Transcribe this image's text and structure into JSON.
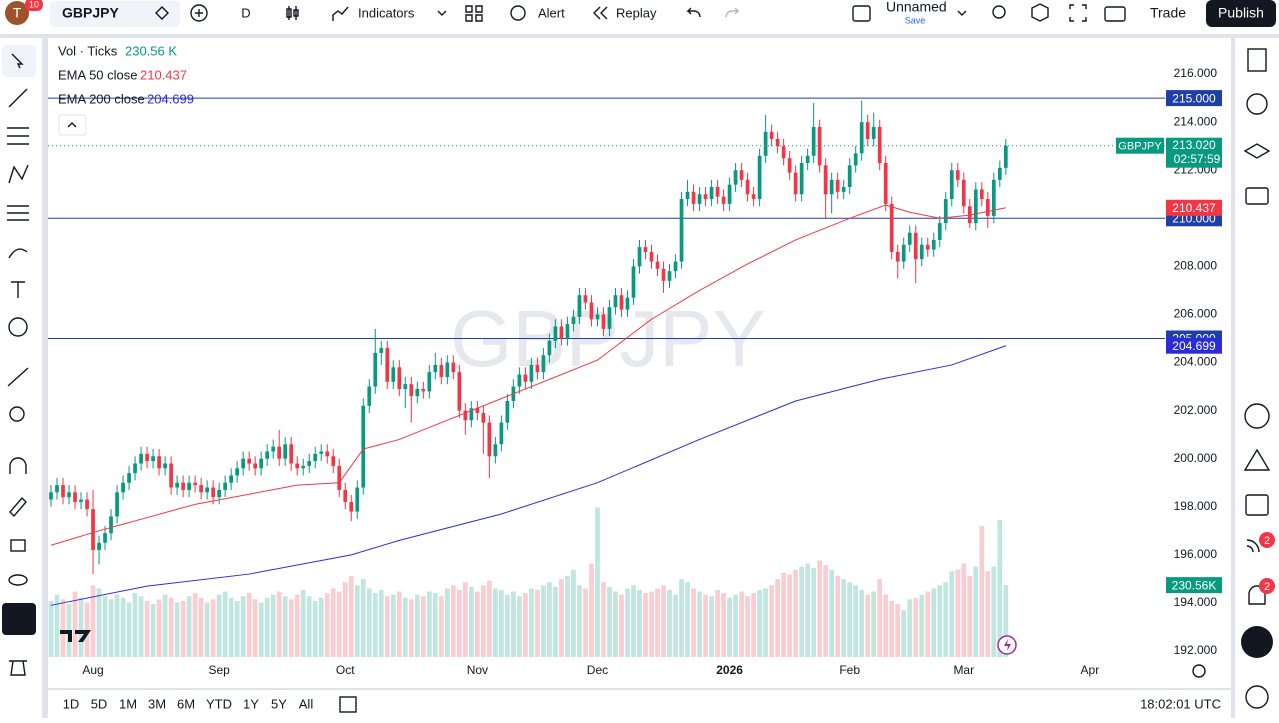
{
  "toolbar": {
    "avatar": "T",
    "avatar_badge": "10",
    "symbol": "GBPJPY",
    "interval": "D",
    "indicators": "Indicators",
    "alert": "Alert",
    "replay": "Replay",
    "layout_name": "Unnamed",
    "save": "Save",
    "trade": "Trade",
    "publish": "Publish"
  },
  "legend": {
    "volume_name": "Vol · Ticks",
    "volume_value": "230.56 K"
  },
  "bottom_bar": {
    "ranges": [
      "1D",
      "5D",
      "1M",
      "3M",
      "6M",
      "YTD",
      "1Y",
      "5Y",
      "All"
    ],
    "clock": "18:02:01 UTC"
  },
  "sidebar": {
    "badges": [
      "2",
      "2"
    ]
  },
  "chart_data": {
    "type": "candlestick",
    "watermark": "GBPJPY",
    "interval": "D",
    "up_color": "#089981",
    "down_color": "#f23645",
    "volume_up_color": "rgba(8,153,129,0.25)",
    "volume_down_color": "rgba(242,54,69,0.25)",
    "xlim": [
      -0.5,
      196
    ],
    "xticks": [
      {
        "value": 7,
        "label": "Aug"
      },
      {
        "value": 28,
        "label": "Sep"
      },
      {
        "value": 49,
        "label": "Oct"
      },
      {
        "value": 71,
        "label": "Nov"
      },
      {
        "value": 91,
        "label": "Dec"
      },
      {
        "value": 113,
        "label": "2026"
      },
      {
        "value": 133,
        "label": "Feb"
      },
      {
        "value": 152,
        "label": "Mar"
      },
      {
        "value": 173,
        "label": "Apr"
      }
    ],
    "ylim": [
      191.75,
      217.5
    ],
    "yticks": [
      {
        "value": 192,
        "label": "192.000"
      },
      {
        "value": 194,
        "label": "194.000"
      },
      {
        "value": 196,
        "label": "196.000"
      },
      {
        "value": 198,
        "label": "198.000"
      },
      {
        "value": 200,
        "label": "200.000"
      },
      {
        "value": 202,
        "label": "202.000"
      },
      {
        "value": 204,
        "label": "204.000"
      },
      {
        "value": 206,
        "label": "206.000"
      },
      {
        "value": 208,
        "label": "208.000"
      },
      {
        "value": 210,
        "label": "210.000"
      },
      {
        "value": 212,
        "label": "212.000"
      },
      {
        "value": 214,
        "label": "214.000"
      },
      {
        "value": 216,
        "label": "216.000"
      }
    ],
    "grid": false,
    "vlim": [
      0,
      600
    ],
    "candles": [
      [
        198.3,
        198.9,
        198.0,
        198.6
      ],
      [
        198.6,
        199.2,
        198.3,
        198.9
      ],
      [
        198.9,
        199.2,
        198.1,
        198.4
      ],
      [
        198.4,
        198.9,
        198.1,
        198.6
      ],
      [
        198.6,
        198.9,
        197.9,
        198.2
      ],
      [
        198.2,
        198.6,
        197.9,
        198.3
      ],
      [
        198.3,
        198.6,
        197.6,
        197.9
      ],
      [
        197.9,
        198.7,
        195.2,
        196.2
      ],
      [
        196.2,
        196.8,
        195.6,
        196.5
      ],
      [
        196.5,
        197.2,
        196.2,
        196.9
      ],
      [
        196.9,
        197.9,
        196.6,
        197.6
      ],
      [
        197.6,
        198.9,
        197.3,
        198.6
      ],
      [
        198.6,
        199.3,
        198.3,
        199.0
      ],
      [
        199.0,
        199.7,
        198.7,
        199.4
      ],
      [
        199.4,
        200.1,
        199.1,
        199.8
      ],
      [
        199.8,
        200.5,
        199.5,
        200.2
      ],
      [
        200.2,
        200.5,
        199.6,
        199.9
      ],
      [
        199.9,
        200.4,
        199.6,
        200.1
      ],
      [
        200.1,
        200.4,
        199.3,
        199.6
      ],
      [
        199.6,
        200.1,
        199.3,
        199.8
      ],
      [
        199.8,
        200.1,
        198.5,
        198.8
      ],
      [
        198.8,
        199.3,
        198.5,
        199.0
      ],
      [
        199.0,
        199.3,
        198.4,
        198.7
      ],
      [
        198.7,
        199.3,
        198.4,
        199.0
      ],
      [
        199.0,
        199.3,
        198.6,
        198.9
      ],
      [
        198.9,
        199.2,
        198.3,
        198.6
      ],
      [
        198.6,
        199.1,
        198.3,
        198.8
      ],
      [
        198.8,
        199.1,
        198.1,
        198.4
      ],
      [
        198.4,
        199.0,
        198.1,
        198.7
      ],
      [
        198.7,
        199.3,
        198.4,
        199.0
      ],
      [
        199.0,
        199.6,
        198.7,
        199.3
      ],
      [
        199.3,
        199.9,
        199.0,
        199.6
      ],
      [
        199.6,
        200.3,
        199.3,
        200.0
      ],
      [
        200.0,
        200.3,
        199.5,
        199.8
      ],
      [
        199.8,
        200.1,
        199.3,
        199.6
      ],
      [
        199.6,
        200.3,
        199.3,
        200.0
      ],
      [
        200.0,
        200.6,
        199.7,
        200.3
      ],
      [
        200.3,
        200.8,
        200.0,
        200.5
      ],
      [
        200.5,
        201.2,
        199.7,
        200.0
      ],
      [
        200.0,
        200.9,
        199.7,
        200.6
      ],
      [
        200.6,
        200.9,
        199.5,
        199.8
      ],
      [
        199.8,
        200.1,
        199.3,
        199.6
      ],
      [
        199.6,
        200.0,
        199.3,
        199.7
      ],
      [
        199.7,
        200.2,
        199.4,
        199.9
      ],
      [
        199.9,
        200.5,
        199.6,
        200.2
      ],
      [
        200.2,
        200.6,
        199.9,
        200.3
      ],
      [
        200.3,
        200.6,
        199.8,
        200.1
      ],
      [
        200.1,
        200.4,
        199.4,
        199.7
      ],
      [
        199.7,
        200.0,
        198.4,
        198.7
      ],
      [
        198.7,
        199.0,
        197.9,
        198.2
      ],
      [
        198.2,
        198.5,
        197.4,
        197.8
      ],
      [
        197.8,
        199.1,
        197.5,
        198.8
      ],
      [
        198.8,
        202.5,
        198.5,
        202.2
      ],
      [
        202.2,
        203.3,
        201.9,
        203.0
      ],
      [
        203.0,
        205.4,
        202.7,
        204.4
      ],
      [
        204.4,
        204.9,
        203.9,
        204.6
      ],
      [
        204.6,
        204.9,
        202.9,
        203.2
      ],
      [
        203.2,
        204.1,
        202.9,
        203.8
      ],
      [
        203.8,
        204.1,
        202.6,
        202.9
      ],
      [
        202.9,
        203.4,
        202.1,
        203.1
      ],
      [
        203.1,
        203.4,
        201.5,
        202.6
      ],
      [
        202.6,
        203.2,
        202.3,
        202.9
      ],
      [
        202.9,
        203.2,
        202.5,
        202.8
      ],
      [
        202.8,
        203.9,
        202.5,
        203.6
      ],
      [
        203.6,
        204.4,
        203.3,
        203.9
      ],
      [
        203.9,
        204.2,
        203.1,
        203.4
      ],
      [
        203.4,
        204.3,
        203.1,
        204.0
      ],
      [
        204.0,
        204.3,
        203.3,
        203.6
      ],
      [
        203.6,
        203.9,
        201.7,
        202.0
      ],
      [
        202.0,
        202.3,
        201.0,
        201.6
      ],
      [
        201.6,
        202.4,
        201.3,
        202.1
      ],
      [
        202.1,
        202.4,
        201.6,
        201.9
      ],
      [
        201.9,
        202.2,
        200.2,
        201.5
      ],
      [
        201.5,
        201.8,
        199.2,
        200.1
      ],
      [
        200.1,
        200.9,
        199.8,
        200.6
      ],
      [
        200.6,
        201.8,
        200.3,
        201.5
      ],
      [
        201.5,
        202.7,
        201.2,
        202.4
      ],
      [
        202.4,
        203.3,
        202.1,
        203.0
      ],
      [
        203.0,
        203.8,
        202.7,
        203.5
      ],
      [
        203.5,
        203.8,
        202.9,
        203.2
      ],
      [
        203.2,
        204.2,
        202.9,
        203.9
      ],
      [
        203.9,
        204.2,
        203.3,
        203.6
      ],
      [
        203.6,
        204.6,
        203.3,
        204.3
      ],
      [
        204.3,
        205.2,
        204.0,
        204.9
      ],
      [
        204.9,
        205.8,
        204.6,
        205.5
      ],
      [
        205.5,
        205.8,
        204.7,
        205.0
      ],
      [
        205.0,
        205.9,
        204.7,
        205.6
      ],
      [
        205.6,
        206.2,
        205.3,
        205.9
      ],
      [
        205.9,
        207.1,
        205.6,
        206.8
      ],
      [
        206.8,
        207.1,
        206.2,
        206.5
      ],
      [
        206.5,
        206.8,
        205.5,
        205.8
      ],
      [
        205.8,
        206.3,
        205.5,
        206.0
      ],
      [
        206.0,
        206.3,
        205.1,
        205.4
      ],
      [
        205.4,
        206.6,
        205.1,
        206.3
      ],
      [
        206.3,
        207.1,
        206.0,
        206.8
      ],
      [
        206.8,
        207.1,
        205.9,
        206.2
      ],
      [
        206.2,
        207.0,
        205.9,
        206.7
      ],
      [
        206.7,
        208.3,
        206.4,
        208.0
      ],
      [
        208.0,
        209.1,
        207.7,
        208.8
      ],
      [
        208.8,
        209.1,
        208.3,
        208.6
      ],
      [
        208.6,
        208.9,
        207.9,
        208.2
      ],
      [
        208.2,
        208.5,
        207.6,
        207.9
      ],
      [
        207.9,
        208.2,
        206.9,
        207.4
      ],
      [
        207.4,
        208.1,
        207.1,
        207.8
      ],
      [
        207.8,
        208.5,
        207.5,
        208.2
      ],
      [
        208.2,
        211.1,
        207.9,
        210.8
      ],
      [
        210.8,
        211.6,
        210.5,
        211.1
      ],
      [
        211.1,
        211.4,
        210.3,
        210.6
      ],
      [
        210.6,
        211.3,
        210.3,
        211.0
      ],
      [
        211.0,
        211.3,
        210.5,
        210.8
      ],
      [
        210.8,
        211.6,
        210.5,
        211.3
      ],
      [
        211.3,
        211.6,
        210.6,
        210.9
      ],
      [
        210.9,
        211.2,
        210.3,
        210.6
      ],
      [
        210.6,
        211.7,
        210.3,
        211.4
      ],
      [
        211.4,
        212.3,
        211.1,
        212.0
      ],
      [
        212.0,
        212.3,
        211.3,
        211.6
      ],
      [
        211.6,
        211.9,
        210.7,
        211.0
      ],
      [
        211.0,
        211.3,
        210.5,
        210.8
      ],
      [
        210.8,
        212.9,
        210.5,
        212.6
      ],
      [
        212.6,
        214.3,
        212.3,
        213.6
      ],
      [
        213.6,
        213.9,
        213.0,
        213.3
      ],
      [
        213.3,
        213.6,
        212.7,
        213.0
      ],
      [
        213.0,
        213.3,
        212.2,
        212.5
      ],
      [
        212.5,
        212.8,
        211.6,
        211.9
      ],
      [
        211.9,
        212.2,
        210.7,
        211.0
      ],
      [
        211.0,
        212.6,
        210.7,
        212.3
      ],
      [
        212.3,
        212.9,
        212.0,
        212.6
      ],
      [
        212.6,
        214.8,
        212.3,
        213.8
      ],
      [
        213.8,
        214.1,
        211.9,
        212.2
      ],
      [
        212.2,
        212.5,
        210.0,
        211.0
      ],
      [
        211.0,
        211.9,
        210.2,
        211.6
      ],
      [
        211.6,
        211.9,
        210.8,
        211.1
      ],
      [
        211.1,
        211.6,
        210.8,
        211.3
      ],
      [
        211.3,
        212.5,
        211.0,
        212.2
      ],
      [
        212.2,
        213.0,
        211.9,
        212.7
      ],
      [
        212.7,
        214.9,
        212.4,
        214.0
      ],
      [
        214.0,
        214.3,
        213.0,
        213.3
      ],
      [
        213.3,
        214.4,
        213.0,
        213.8
      ],
      [
        213.8,
        214.1,
        212.0,
        212.3
      ],
      [
        212.3,
        212.6,
        210.3,
        210.6
      ],
      [
        210.6,
        210.9,
        208.3,
        208.6
      ],
      [
        208.6,
        208.9,
        207.5,
        208.2
      ],
      [
        208.2,
        209.2,
        207.9,
        208.9
      ],
      [
        208.9,
        209.7,
        208.6,
        209.4
      ],
      [
        209.4,
        209.7,
        207.3,
        208.3
      ],
      [
        208.3,
        209.2,
        208.0,
        208.9
      ],
      [
        208.9,
        209.2,
        208.4,
        208.7
      ],
      [
        208.7,
        209.4,
        208.4,
        209.1
      ],
      [
        209.1,
        210.1,
        208.8,
        209.8
      ],
      [
        209.8,
        211.1,
        209.5,
        210.8
      ],
      [
        210.8,
        212.3,
        210.5,
        212.0
      ],
      [
        212.0,
        212.3,
        211.3,
        211.6
      ],
      [
        211.6,
        211.9,
        210.2,
        210.5
      ],
      [
        210.5,
        210.8,
        209.6,
        209.8
      ],
      [
        209.8,
        211.5,
        209.5,
        211.2
      ],
      [
        211.2,
        211.5,
        210.5,
        210.8
      ],
      [
        210.8,
        211.1,
        209.6,
        210.1
      ],
      [
        210.1,
        211.9,
        209.8,
        211.6
      ],
      [
        211.6,
        212.4,
        211.3,
        212.1
      ],
      [
        212.1,
        213.3,
        211.8,
        213.02
      ]
    ],
    "volume": [
      180,
      200,
      185,
      170,
      210,
      190,
      175,
      230,
      220,
      195,
      185,
      200,
      190,
      175,
      205,
      195,
      180,
      170,
      185,
      200,
      190,
      175,
      180,
      195,
      205,
      190,
      175,
      185,
      200,
      210,
      190,
      180,
      195,
      205,
      185,
      175,
      190,
      200,
      210,
      195,
      185,
      200,
      215,
      195,
      180,
      190,
      205,
      220,
      210,
      240,
      260,
      230,
      250,
      220,
      205,
      215,
      195,
      200,
      210,
      190,
      185,
      200,
      195,
      210,
      205,
      195,
      220,
      230,
      215,
      240,
      225,
      210,
      230,
      245,
      220,
      215,
      200,
      210,
      195,
      205,
      220,
      215,
      230,
      240,
      225,
      250,
      260,
      280,
      230,
      220,
      300,
      480,
      240,
      225,
      210,
      200,
      220,
      230,
      215,
      205,
      210,
      220,
      230,
      215,
      200,
      250,
      240,
      220,
      210,
      200,
      195,
      215,
      205,
      190,
      200,
      210,
      195,
      205,
      215,
      220,
      230,
      250,
      270,
      265,
      280,
      290,
      300,
      285,
      310,
      295,
      280,
      260,
      250,
      240,
      230,
      215,
      200,
      210,
      250,
      200,
      180,
      170,
      150,
      185,
      190,
      200,
      210,
      220,
      230,
      240,
      275,
      280,
      300,
      260,
      290,
      420,
      275,
      290,
      440,
      230.56
    ],
    "series": [
      {
        "name": "EMA 50 close",
        "color": "#f23645",
        "x": [
          0,
          8,
          24,
          41,
          48,
          52,
          58,
          66,
          74,
          83,
          91,
          100,
          108,
          116,
          124,
          133,
          139,
          143,
          148,
          153,
          159
        ],
        "values": [
          196.4,
          197.0,
          198.1,
          198.9,
          199.0,
          200.4,
          200.8,
          201.6,
          202.4,
          203.3,
          204.1,
          205.8,
          207.0,
          208.1,
          209.1,
          210.0,
          210.55,
          210.25,
          210.0,
          210.13,
          210.437
        ],
        "last": {
          "value": 210.437,
          "label": "210.437"
        }
      },
      {
        "name": "EMA 200 close",
        "color": "#2b2bd9",
        "x": [
          0,
          16,
          33,
          50,
          58,
          75,
          91,
          108,
          124,
          138,
          150,
          159
        ],
        "values": [
          193.9,
          194.7,
          195.2,
          196.0,
          196.6,
          197.7,
          199.0,
          200.8,
          202.4,
          203.3,
          203.9,
          204.699
        ],
        "last": {
          "value": 204.699,
          "label": "204.699"
        }
      }
    ],
    "levels": [
      {
        "value": 215,
        "label": "215.000"
      },
      {
        "value": 210,
        "label": "210.000"
      },
      {
        "value": 205,
        "label": "205.000"
      }
    ],
    "level_color": "#1e3fa8",
    "last_price": {
      "value": 213.02,
      "label": "213.020"
    },
    "countdown": "02:57:59",
    "symbol_tag": "GBPJPY",
    "volume_tag": {
      "value": 230.56,
      "label": "230.56K"
    }
  }
}
